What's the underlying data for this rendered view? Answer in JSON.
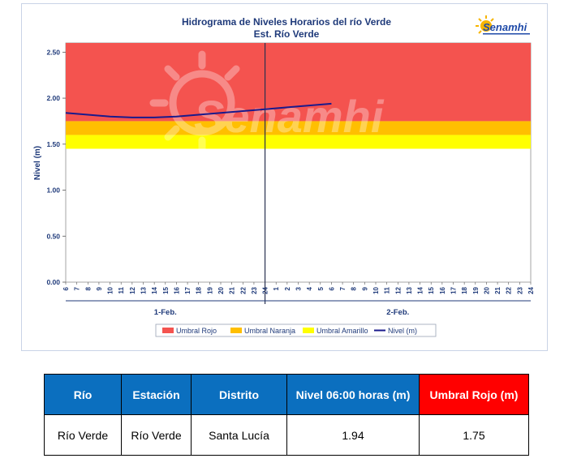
{
  "chart_data": {
    "type": "line",
    "title": "Hidrograma de Niveles Horarios del río Verde",
    "subtitle": "Est. Río Verde",
    "ylabel": "Nivel (m)",
    "xlabel": "",
    "ylim": [
      0,
      2.6
    ],
    "yticks": [
      "0.00",
      "0.50",
      "1.00",
      "1.50",
      "2.00",
      "2.50"
    ],
    "hour_ticks": [
      "6",
      "7",
      "8",
      "9",
      "10",
      "11",
      "12",
      "13",
      "14",
      "15",
      "16",
      "17",
      "18",
      "19",
      "20",
      "21",
      "22",
      "23",
      "24",
      "1",
      "2",
      "3",
      "4",
      "5",
      "6",
      "7",
      "8",
      "9",
      "10",
      "11",
      "12",
      "13",
      "14",
      "15",
      "16",
      "17",
      "18",
      "19",
      "20",
      "21",
      "22",
      "23",
      "24"
    ],
    "day_labels": [
      "1-Feb.",
      "2-Feb."
    ],
    "thresholds": [
      {
        "name": "Umbral Rojo",
        "from": 1.75,
        "to": 2.6,
        "color": "#f4534f"
      },
      {
        "name": "Umbral Naranja",
        "from": 1.6,
        "to": 1.75,
        "color": "#ffbf00"
      },
      {
        "name": "Umbral Amarillo",
        "from": 1.45,
        "to": 1.6,
        "color": "#ffff00"
      }
    ],
    "series": [
      {
        "name": "Nivel (m)",
        "color": "#1a1a8c",
        "x": [
          0,
          2,
          4,
          6,
          8,
          10,
          12,
          14,
          16,
          18,
          20,
          22,
          24
        ],
        "values": [
          1.84,
          1.82,
          1.8,
          1.79,
          1.79,
          1.8,
          1.82,
          1.84,
          1.86,
          1.88,
          1.9,
          1.92,
          1.94
        ]
      }
    ],
    "legend": [
      "Umbral Rojo",
      "Umbral Naranja",
      "Umbral Amarillo",
      "Nivel (m)"
    ],
    "legend_position": "bottom",
    "grid": false
  },
  "brand": {
    "logo_text": "Senamhi",
    "watermark_text": "Senamhi"
  },
  "table": {
    "headers": [
      "Río",
      "Estación",
      "Distrito",
      "Nivel  06:00 horas (m)",
      "Umbral Rojo (m)"
    ],
    "row": [
      "Río Verde",
      "Río Verde",
      "Santa Lucía",
      "1.94",
      "1.75"
    ]
  },
  "colors": {
    "header_blue": "#0b6fbf",
    "header_red": "#ff0000",
    "title_navy": "#1f3a7a"
  }
}
